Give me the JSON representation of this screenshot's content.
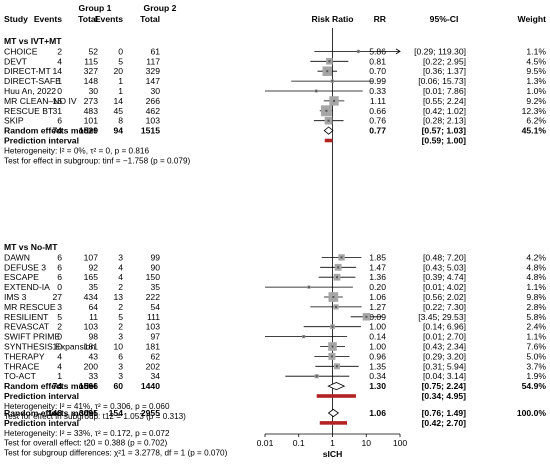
{
  "chart_data": {
    "type": "forest",
    "x_scale": "log",
    "xlim": [
      0.01,
      100
    ],
    "x_ticks": [
      "0.01",
      "0.1",
      "1",
      "10",
      "100"
    ],
    "reference_line": 1,
    "xlabel": "sICH",
    "headers": {
      "group1": "Group 1",
      "group2": "Group 2",
      "study": "Study",
      "events1": "Events",
      "total1": "Total",
      "events2": "Events",
      "total2": "Total",
      "risk_ratio": "Risk Ratio",
      "rr": "RR",
      "ci": "95%-CI",
      "weight": "Weight"
    },
    "subgroups": [
      {
        "title": "MT vs IVT+MT",
        "studies": [
          {
            "name": "CHOICE",
            "e1": "2",
            "n1": "52",
            "e2": "0",
            "n2": "61",
            "rr": "5.86",
            "ci": "[0.29; 119.30]",
            "w": "1.1%",
            "est": 5.86,
            "lo": 0.29,
            "hi": 119.3,
            "size": 1.1
          },
          {
            "name": "DEVT",
            "e1": "4",
            "n1": "115",
            "e2": "5",
            "n2": "117",
            "rr": "0.81",
            "ci": "[0.22; 2.95]",
            "w": "4.5%",
            "est": 0.81,
            "lo": 0.22,
            "hi": 2.95,
            "size": 4.5
          },
          {
            "name": "DIRECT-MT",
            "e1": "14",
            "n1": "327",
            "e2": "20",
            "n2": "329",
            "rr": "0.70",
            "ci": "[0.36; 1.37]",
            "w": "9.5%",
            "est": 0.7,
            "lo": 0.36,
            "hi": 1.37,
            "size": 9.5
          },
          {
            "name": "DIRECT-SAFE",
            "e1": "1",
            "n1": "148",
            "e2": "1",
            "n2": "147",
            "rr": "0.99",
            "ci": "[0.06; 15.73]",
            "w": "1.3%",
            "est": 0.99,
            "lo": 0.06,
            "hi": 15.73,
            "size": 1.3
          },
          {
            "name": "Huu An, 2022",
            "e1": "0",
            "n1": "30",
            "e2": "1",
            "n2": "30",
            "rr": "0.33",
            "ci": "[0.01; 7.86]",
            "w": "1.0%",
            "est": 0.33,
            "lo": 0.01,
            "hi": 7.86,
            "size": 1.0
          },
          {
            "name": "MR CLEAN–NO IV",
            "e1": "16",
            "n1": "273",
            "e2": "14",
            "n2": "266",
            "rr": "1.11",
            "ci": "[0.55; 2.24]",
            "w": "9.2%",
            "est": 1.11,
            "lo": 0.55,
            "hi": 2.24,
            "size": 9.2
          },
          {
            "name": "RESCUE BT",
            "e1": "31",
            "n1": "483",
            "e2": "45",
            "n2": "462",
            "rr": "0.66",
            "ci": "[0.42; 1.02]",
            "w": "12.3%",
            "est": 0.66,
            "lo": 0.42,
            "hi": 1.02,
            "size": 12.3
          },
          {
            "name": "SKIP",
            "e1": "6",
            "n1": "101",
            "e2": "8",
            "n2": "103",
            "rr": "0.76",
            "ci": "[0.28; 2.13]",
            "w": "6.2%",
            "est": 0.76,
            "lo": 0.28,
            "hi": 2.13,
            "size": 6.2
          }
        ],
        "random": {
          "label": "Random effects model",
          "e1": "74",
          "n1": "1529",
          "e2": "94",
          "n2": "1515",
          "rr": "0.77",
          "ci": "[0.57; 1.03]",
          "w": "45.1%",
          "est": 0.77,
          "lo": 0.57,
          "hi": 1.03
        },
        "prediction": {
          "label": "Prediction interval",
          "ci": "[0.59; 1.00]",
          "lo": 0.59,
          "hi": 1.0
        },
        "heterogeneity": "Heterogeneity: I² = 0%, τ² = 0, p = 0.816",
        "subgroup_test": "Test for effect in subgroup: tinf = −1.758 (p = 0.079)"
      },
      {
        "title": "MT vs No-MT",
        "studies": [
          {
            "name": "DAWN",
            "e1": "6",
            "n1": "107",
            "e2": "3",
            "n2": "99",
            "rr": "1.85",
            "ci": "[0.48; 7.20]",
            "w": "4.2%",
            "est": 1.85,
            "lo": 0.48,
            "hi": 7.2,
            "size": 4.2
          },
          {
            "name": "DEFUSE 3",
            "e1": "6",
            "n1": "92",
            "e2": "4",
            "n2": "90",
            "rr": "1.47",
            "ci": "[0.43; 5.03]",
            "w": "4.8%",
            "est": 1.47,
            "lo": 0.43,
            "hi": 5.03,
            "size": 4.8
          },
          {
            "name": "ESCAPE",
            "e1": "6",
            "n1": "165",
            "e2": "4",
            "n2": "150",
            "rr": "1.36",
            "ci": "[0.39; 4.74]",
            "w": "4.8%",
            "est": 1.36,
            "lo": 0.39,
            "hi": 4.74,
            "size": 4.8
          },
          {
            "name": "EXTEND-IA",
            "e1": "0",
            "n1": "35",
            "e2": "2",
            "n2": "35",
            "rr": "0.20",
            "ci": "[0.01; 4.02]",
            "w": "1.1%",
            "est": 0.2,
            "lo": 0.01,
            "hi": 4.02,
            "size": 1.1
          },
          {
            "name": "IMS 3",
            "e1": "27",
            "n1": "434",
            "e2": "13",
            "n2": "222",
            "rr": "1.06",
            "ci": "[0.56; 2.02]",
            "w": "9.8%",
            "est": 1.06,
            "lo": 0.56,
            "hi": 2.02,
            "size": 9.8
          },
          {
            "name": "MR RESCUE",
            "e1": "3",
            "n1": "64",
            "e2": "2",
            "n2": "54",
            "rr": "1.27",
            "ci": "[0.22; 7.30]",
            "w": "2.8%",
            "est": 1.27,
            "lo": 0.22,
            "hi": 7.3,
            "size": 2.8
          },
          {
            "name": "RESILIENT",
            "e1": "5",
            "n1": "11",
            "e2": "5",
            "n2": "111",
            "rr": "10.09",
            "ci": "[3.45; 29.53]",
            "w": "5.8%",
            "est": 10.09,
            "lo": 3.45,
            "hi": 29.53,
            "size": 5.8
          },
          {
            "name": "REVASCAT",
            "e1": "2",
            "n1": "103",
            "e2": "2",
            "n2": "103",
            "rr": "1.00",
            "ci": "[0.14; 6.96]",
            "w": "2.4%",
            "est": 1.0,
            "lo": 0.14,
            "hi": 6.96,
            "size": 2.4
          },
          {
            "name": "SWIFT PRIME",
            "e1": "0",
            "n1": "98",
            "e2": "3",
            "n2": "97",
            "rr": "0.14",
            "ci": "[0.01; 2.70]",
            "w": "1.1%",
            "est": 0.14,
            "lo": 0.01,
            "hi": 2.7,
            "size": 1.1
          },
          {
            "name": "SYNTHESIS Expansion",
            "e1": "10",
            "n1": "181",
            "e2": "10",
            "n2": "181",
            "rr": "1.00",
            "ci": "[0.43; 2.34]",
            "w": "7.6%",
            "est": 1.0,
            "lo": 0.43,
            "hi": 2.34,
            "size": 7.6
          },
          {
            "name": "THERAPY",
            "e1": "4",
            "n1": "43",
            "e2": "6",
            "n2": "62",
            "rr": "0.96",
            "ci": "[0.29; 3.20]",
            "w": "5.0%",
            "est": 0.96,
            "lo": 0.29,
            "hi": 3.2,
            "size": 5.0
          },
          {
            "name": "THRACE",
            "e1": "4",
            "n1": "200",
            "e2": "3",
            "n2": "202",
            "rr": "1.35",
            "ci": "[0.31; 5.94]",
            "w": "3.7%",
            "est": 1.35,
            "lo": 0.31,
            "hi": 5.94,
            "size": 3.7
          },
          {
            "name": "TO-ACT",
            "e1": "1",
            "n1": "33",
            "e2": "3",
            "n2": "34",
            "rr": "0.34",
            "ci": "[0.04; 3.14]",
            "w": "1.9%",
            "est": 0.34,
            "lo": 0.04,
            "hi": 3.14,
            "size": 1.9
          }
        ],
        "random": {
          "label": "Random effects model",
          "e1": "74",
          "n1": "1566",
          "e2": "60",
          "n2": "1440",
          "rr": "1.30",
          "ci": "[0.75; 2.24]",
          "w": "54.9%",
          "est": 1.3,
          "lo": 0.75,
          "hi": 2.24
        },
        "prediction": {
          "label": "Prediction interval",
          "ci": "[0.34; 4.95]",
          "lo": 0.34,
          "hi": 4.95
        },
        "heterogeneity": "Heterogeneity: I² = 41%, τ² = 0.306, p = 0.060",
        "subgroup_test": "Test for effect in subgroup: t12 = 1.053 (p = 0.313)"
      }
    ],
    "overall": {
      "random": {
        "label": "Random effects model",
        "e1": "148",
        "n1": "3095",
        "e2": "154",
        "n2": "2955",
        "rr": "1.06",
        "ci": "[0.76; 1.49]",
        "w": "100.0%",
        "est": 1.06,
        "lo": 0.76,
        "hi": 1.49
      },
      "prediction": {
        "label": "Prediction interval",
        "ci": "[0.42; 2.70]",
        "lo": 0.42,
        "hi": 2.7
      },
      "heterogeneity": "Heterogeneity: I² = 33%, τ² = 0.172, p = 0.072",
      "overall_test": "Test for overall effect: t20 = 0.388 (p = 0.702)",
      "subgroup_diff": "Test for subgroup differences: χ²1 = 3.2778, df = 1 (p = 0.070)"
    },
    "colors": {
      "box": "#a6a6a6",
      "prediction": "#b22222",
      "line": "#000000",
      "diamond_fill": "#ffffff"
    }
  }
}
